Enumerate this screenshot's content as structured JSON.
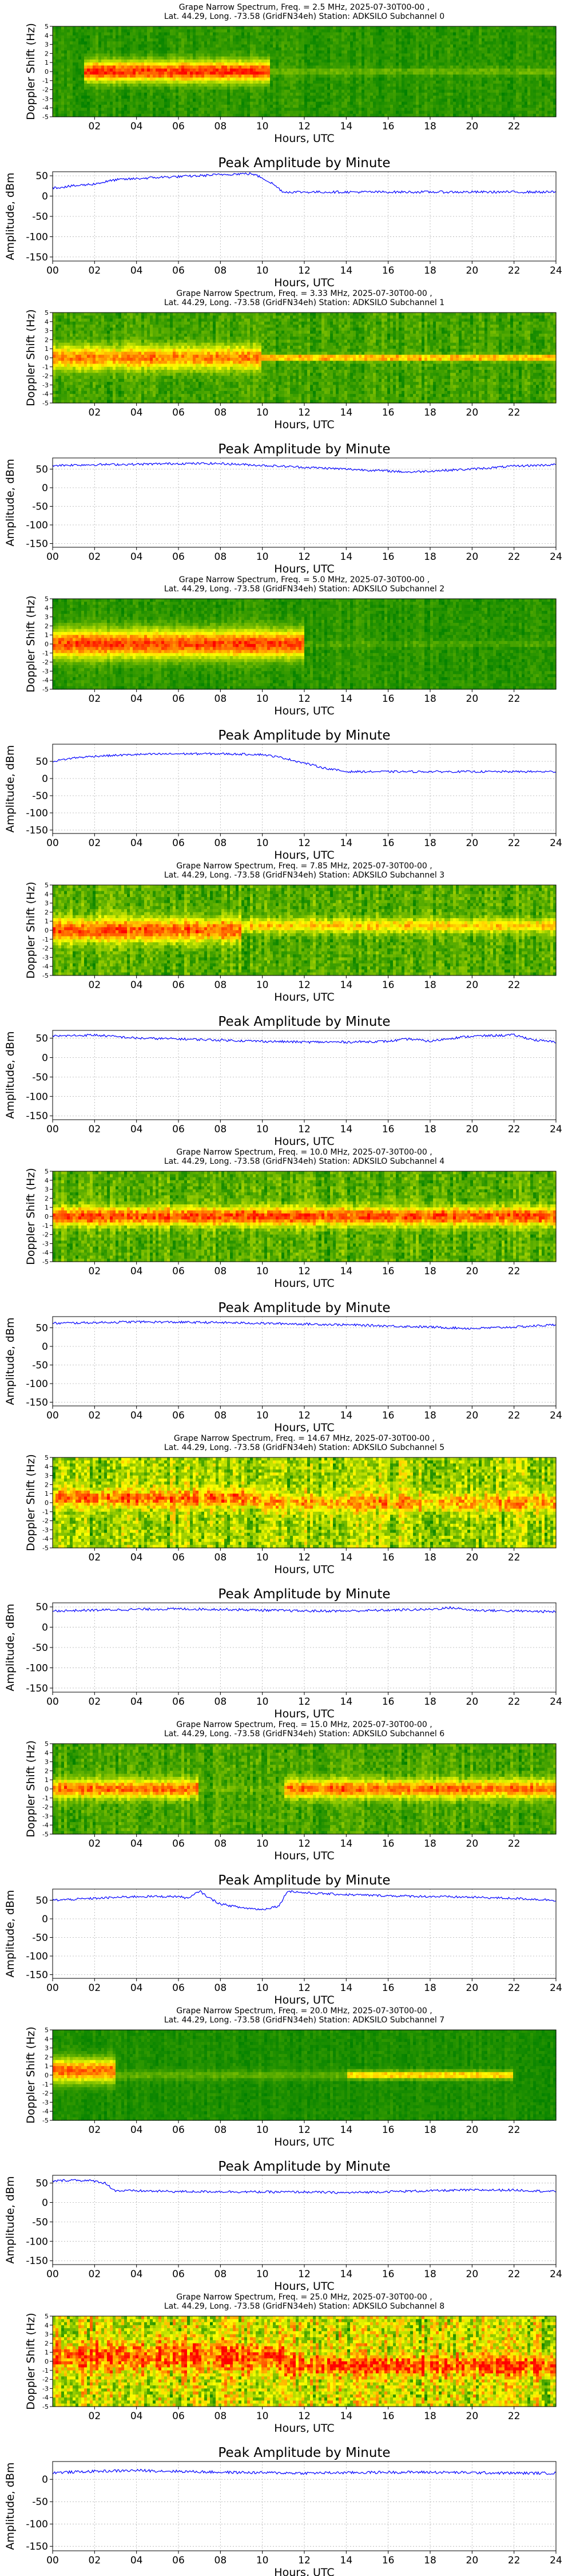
{
  "figure": {
    "spectrogram_ylabel": "Doppler Shift (Hz)",
    "amplitude_ylabel": "Amplitude, dBm",
    "xlabel": "Hours, UTC",
    "amplitude_title": "Peak Amplitude by Minute",
    "spectrogram_yticks": [
      "5",
      "4",
      "3",
      "2",
      "1",
      "0",
      "-1",
      "-2",
      "-3",
      "-4",
      "-5"
    ],
    "colors": {
      "line": "#0000ff",
      "grid": "#b0b0b0",
      "spec_low": "#008000",
      "spec_mid": "#ffff00",
      "spec_high": "#ff0000"
    }
  },
  "chart_data": [
    {
      "type": "heatmap",
      "title": "Grape Narrow Spectrum, Freq. = 2.5 MHz, 2025-07-30T00-00 ,",
      "subtitle": "Lat. 44.29, Long. -73.58 (GridFN34eh) Station: ADKSILO Subchannel 0",
      "xlabel": "Hours, UTC",
      "ylabel": "Doppler Shift (Hz)",
      "xlim": [
        0,
        24
      ],
      "ylim": [
        -5,
        5
      ],
      "x_ticks": [
        "02",
        "04",
        "06",
        "08",
        "10",
        "12",
        "14",
        "16",
        "18",
        "20",
        "22"
      ],
      "signal_bands": [
        {
          "start": 1.5,
          "end": 10.3,
          "center": 0.0,
          "width": 2.2,
          "intensity": 0.95
        },
        {
          "start": 10.3,
          "end": 24,
          "center": 0.0,
          "width": 0.8,
          "intensity": 0.15
        }
      ],
      "noise": 0.12
    },
    {
      "type": "line",
      "title": "Peak Amplitude by Minute",
      "xlabel": "Hours, UTC",
      "ylabel": "Amplitude, dBm",
      "xlim": [
        0,
        24
      ],
      "ylim": [
        -160,
        60
      ],
      "x_ticks": [
        "00",
        "02",
        "04",
        "06",
        "08",
        "10",
        "12",
        "14",
        "16",
        "18",
        "20",
        "22",
        "24"
      ],
      "y_ticks": [
        50,
        0,
        -50,
        -100,
        -150
      ],
      "grid": true,
      "x": [
        0,
        1,
        2,
        3,
        4,
        5,
        6,
        7,
        8,
        9,
        9.5,
        10,
        10.5,
        11,
        12,
        14,
        16,
        18,
        20,
        22,
        24
      ],
      "y": [
        20,
        25,
        30,
        40,
        43,
        46,
        48,
        50,
        53,
        55,
        55,
        45,
        30,
        10,
        10,
        10,
        10,
        10,
        10,
        10,
        10
      ]
    },
    {
      "type": "heatmap",
      "title": "Grape Narrow Spectrum, Freq. = 3.33 MHz, 2025-07-30T00-00 ,",
      "subtitle": "Lat. 44.29, Long. -73.58 (GridFN34eh) Station: ADKSILO Subchannel 1",
      "xlabel": "Hours, UTC",
      "ylabel": "Doppler Shift (Hz)",
      "xlim": [
        0,
        24
      ],
      "ylim": [
        -5,
        5
      ],
      "x_ticks": [
        "02",
        "04",
        "06",
        "08",
        "10",
        "12",
        "14",
        "16",
        "18",
        "20",
        "22"
      ],
      "signal_bands": [
        {
          "start": 0,
          "end": 10,
          "center": 0.0,
          "width": 2.5,
          "intensity": 0.7
        },
        {
          "start": 10,
          "end": 24,
          "center": 0.0,
          "width": 0.6,
          "intensity": 0.75
        }
      ],
      "noise": 0.18
    },
    {
      "type": "line",
      "title": "Peak Amplitude by Minute",
      "xlabel": "Hours, UTC",
      "ylabel": "Amplitude, dBm",
      "xlim": [
        0,
        24
      ],
      "ylim": [
        -160,
        80
      ],
      "x_ticks": [
        "00",
        "02",
        "04",
        "06",
        "08",
        "10",
        "12",
        "14",
        "16",
        "18",
        "20",
        "22",
        "24"
      ],
      "y_ticks": [
        50,
        0,
        -50,
        -100,
        -150
      ],
      "grid": true,
      "x": [
        0,
        2,
        4,
        6,
        8,
        10,
        12,
        14,
        16,
        17,
        18,
        20,
        22,
        24
      ],
      "y": [
        60,
        62,
        63,
        65,
        65,
        60,
        55,
        50,
        45,
        42,
        45,
        50,
        58,
        62
      ]
    },
    {
      "type": "heatmap",
      "title": "Grape Narrow Spectrum, Freq. = 5.0 MHz, 2025-07-30T00-00 ,",
      "subtitle": "Lat. 44.29, Long. -73.58 (GridFN34eh) Station: ADKSILO Subchannel 2",
      "xlabel": "Hours, UTC",
      "ylabel": "Doppler Shift (Hz)",
      "xlim": [
        0,
        24
      ],
      "ylim": [
        -5,
        5
      ],
      "x_ticks": [
        "02",
        "04",
        "06",
        "08",
        "10",
        "12",
        "14",
        "16",
        "18",
        "20",
        "22"
      ],
      "signal_bands": [
        {
          "start": 0,
          "end": 12,
          "center": 0.0,
          "width": 3.0,
          "intensity": 0.9
        },
        {
          "start": 12,
          "end": 24,
          "center": 0.0,
          "width": 0.5,
          "intensity": 0.1
        }
      ],
      "noise": 0.12
    },
    {
      "type": "line",
      "title": "Peak Amplitude by Minute",
      "xlabel": "Hours, UTC",
      "ylabel": "Amplitude, dBm",
      "xlim": [
        0,
        24
      ],
      "ylim": [
        -160,
        100
      ],
      "x_ticks": [
        "00",
        "02",
        "04",
        "06",
        "08",
        "10",
        "12",
        "14",
        "16",
        "18",
        "20",
        "22",
        "24"
      ],
      "y_ticks": [
        50,
        0,
        -50,
        -100,
        -150
      ],
      "grid": true,
      "x": [
        0,
        1,
        2,
        4,
        6,
        8,
        10,
        11,
        12,
        13,
        14,
        16,
        18,
        20,
        22,
        24
      ],
      "y": [
        50,
        60,
        65,
        70,
        72,
        72,
        70,
        60,
        45,
        30,
        20,
        20,
        20,
        20,
        20,
        20
      ]
    },
    {
      "type": "heatmap",
      "title": "Grape Narrow Spectrum, Freq. = 7.85 MHz, 2025-07-30T00-00 ,",
      "subtitle": "Lat. 44.29, Long. -73.58 (GridFN34eh) Station: ADKSILO Subchannel 3",
      "xlabel": "Hours, UTC",
      "ylabel": "Doppler Shift (Hz)",
      "xlim": [
        0,
        24
      ],
      "ylim": [
        -5,
        5
      ],
      "x_ticks": [
        "02",
        "04",
        "06",
        "08",
        "10",
        "12",
        "14",
        "16",
        "18",
        "20",
        "22"
      ],
      "signal_bands": [
        {
          "start": 0,
          "end": 9,
          "center": 0.0,
          "width": 2.5,
          "intensity": 0.75
        },
        {
          "start": 9,
          "end": 24,
          "center": 0.5,
          "width": 1.5,
          "intensity": 0.5
        }
      ],
      "noise": 0.25
    },
    {
      "type": "line",
      "title": "Peak Amplitude by Minute",
      "xlabel": "Hours, UTC",
      "ylabel": "Amplitude, dBm",
      "xlim": [
        0,
        24
      ],
      "ylim": [
        -160,
        70
      ],
      "x_ticks": [
        "00",
        "02",
        "04",
        "06",
        "08",
        "10",
        "12",
        "14",
        "16",
        "18",
        "20",
        "22",
        "24"
      ],
      "y_ticks": [
        50,
        0,
        -50,
        -100,
        -150
      ],
      "grid": true,
      "x": [
        0,
        2,
        4,
        6,
        8,
        10,
        12,
        14,
        16,
        17,
        18,
        19,
        20,
        22,
        23,
        24
      ],
      "y": [
        55,
        58,
        50,
        48,
        45,
        42,
        40,
        40,
        42,
        48,
        42,
        50,
        55,
        58,
        45,
        40
      ]
    },
    {
      "type": "heatmap",
      "title": "Grape Narrow Spectrum, Freq. = 10.0 MHz, 2025-07-30T00-00 ,",
      "subtitle": "Lat. 44.29, Long. -73.58 (GridFN34eh) Station: ADKSILO Subchannel 4",
      "xlabel": "Hours, UTC",
      "ylabel": "Doppler Shift (Hz)",
      "xlim": [
        0,
        24
      ],
      "ylim": [
        -5,
        5
      ],
      "x_ticks": [
        "02",
        "04",
        "06",
        "08",
        "10",
        "12",
        "14",
        "16",
        "18",
        "20",
        "22"
      ],
      "signal_bands": [
        {
          "start": 0,
          "end": 24,
          "center": 0.0,
          "width": 2.0,
          "intensity": 0.8
        }
      ],
      "noise": 0.25
    },
    {
      "type": "line",
      "title": "Peak Amplitude by Minute",
      "xlabel": "Hours, UTC",
      "ylabel": "Amplitude, dBm",
      "xlim": [
        0,
        24
      ],
      "ylim": [
        -160,
        80
      ],
      "x_ticks": [
        "00",
        "02",
        "04",
        "06",
        "08",
        "10",
        "12",
        "14",
        "16",
        "18",
        "20",
        "22",
        "24"
      ],
      "y_ticks": [
        50,
        0,
        -50,
        -100,
        -150
      ],
      "grid": true,
      "x": [
        0,
        2,
        4,
        6,
        8,
        10,
        12,
        14,
        16,
        18,
        20,
        22,
        24
      ],
      "y": [
        62,
        64,
        66,
        65,
        64,
        62,
        60,
        58,
        55,
        52,
        48,
        52,
        58
      ]
    },
    {
      "type": "heatmap",
      "title": "Grape Narrow Spectrum, Freq. = 14.67 MHz, 2025-07-30T00-00 ,",
      "subtitle": "Lat. 44.29, Long. -73.58 (GridFN34eh) Station: ADKSILO Subchannel 5",
      "xlabel": "Hours, UTC",
      "ylabel": "Doppler Shift (Hz)",
      "xlim": [
        0,
        24
      ],
      "ylim": [
        -5,
        5
      ],
      "x_ticks": [
        "02",
        "04",
        "06",
        "08",
        "10",
        "12",
        "14",
        "16",
        "18",
        "20",
        "22"
      ],
      "signal_bands": [
        {
          "start": 0,
          "end": 10,
          "center": 0.5,
          "width": 2.0,
          "intensity": 0.55
        },
        {
          "start": 10,
          "end": 24,
          "center": 0.0,
          "width": 2.0,
          "intensity": 0.4
        }
      ],
      "noise": 0.45
    },
    {
      "type": "line",
      "title": "Peak Amplitude by Minute",
      "xlabel": "Hours, UTC",
      "ylabel": "Amplitude, dBm",
      "xlim": [
        0,
        24
      ],
      "ylim": [
        -160,
        60
      ],
      "x_ticks": [
        "00",
        "02",
        "04",
        "06",
        "08",
        "10",
        "12",
        "14",
        "16",
        "18",
        "20",
        "22",
        "24"
      ],
      "y_ticks": [
        50,
        0,
        -50,
        -100,
        -150
      ],
      "grid": true,
      "x": [
        0,
        2,
        4,
        6,
        8,
        10,
        12,
        14,
        16,
        18,
        19,
        20,
        22,
        24
      ],
      "y": [
        40,
        42,
        44,
        45,
        44,
        42,
        40,
        40,
        42,
        44,
        48,
        42,
        40,
        38
      ]
    },
    {
      "type": "heatmap",
      "title": "Grape Narrow Spectrum, Freq. = 15.0 MHz, 2025-07-30T00-00 ,",
      "subtitle": "Lat. 44.29, Long. -73.58 (GridFN34eh) Station: ADKSILO Subchannel 6",
      "xlabel": "Hours, UTC",
      "ylabel": "Doppler Shift (Hz)",
      "xlim": [
        0,
        24
      ],
      "ylim": [
        -5,
        5
      ],
      "x_ticks": [
        "02",
        "04",
        "06",
        "08",
        "10",
        "12",
        "14",
        "16",
        "18",
        "20",
        "22"
      ],
      "signal_bands": [
        {
          "start": 0,
          "end": 7,
          "center": 0.0,
          "width": 2.0,
          "intensity": 0.75
        },
        {
          "start": 7,
          "end": 11,
          "center": 0.0,
          "width": 0.5,
          "intensity": 0.1
        },
        {
          "start": 11,
          "end": 24,
          "center": 0.0,
          "width": 2.0,
          "intensity": 0.75
        }
      ],
      "noise": 0.2
    },
    {
      "type": "line",
      "title": "Peak Amplitude by Minute",
      "xlabel": "Hours, UTC",
      "ylabel": "Amplitude, dBm",
      "xlim": [
        0,
        24
      ],
      "ylim": [
        -160,
        80
      ],
      "x_ticks": [
        "00",
        "02",
        "04",
        "06",
        "08",
        "10",
        "12",
        "14",
        "16",
        "18",
        "20",
        "22",
        "24"
      ],
      "y_ticks": [
        50,
        0,
        -50,
        -100,
        -150
      ],
      "grid": true,
      "x": [
        0,
        2,
        4,
        6,
        6.5,
        7,
        7.5,
        8,
        9,
        10,
        10.8,
        11.2,
        12,
        14,
        16,
        18,
        20,
        22,
        24
      ],
      "y": [
        50,
        55,
        60,
        60,
        55,
        75,
        55,
        40,
        30,
        25,
        35,
        75,
        70,
        65,
        62,
        60,
        58,
        55,
        50
      ]
    },
    {
      "type": "heatmap",
      "title": "Grape Narrow Spectrum, Freq. = 20.0 MHz, 2025-07-30T00-00 ,",
      "subtitle": "Lat. 44.29, Long. -73.58 (GridFN34eh) Station: ADKSILO Subchannel 7",
      "xlabel": "Hours, UTC",
      "ylabel": "Doppler Shift (Hz)",
      "xlim": [
        0,
        24
      ],
      "ylim": [
        -5,
        5
      ],
      "x_ticks": [
        "02",
        "04",
        "06",
        "08",
        "10",
        "12",
        "14",
        "16",
        "18",
        "20",
        "22"
      ],
      "signal_bands": [
        {
          "start": 0,
          "end": 3,
          "center": 0.5,
          "width": 2.5,
          "intensity": 0.85
        },
        {
          "start": 3,
          "end": 14,
          "center": 0.0,
          "width": 1.0,
          "intensity": 0.15
        },
        {
          "start": 14,
          "end": 22,
          "center": 0.0,
          "width": 0.8,
          "intensity": 0.7
        }
      ],
      "noise": 0.08
    },
    {
      "type": "line",
      "title": "Peak Amplitude by Minute",
      "xlabel": "Hours, UTC",
      "ylabel": "Amplitude, dBm",
      "xlim": [
        0,
        24
      ],
      "ylim": [
        -160,
        70
      ],
      "x_ticks": [
        "00",
        "02",
        "04",
        "06",
        "08",
        "10",
        "12",
        "14",
        "16",
        "18",
        "20",
        "22",
        "24"
      ],
      "y_ticks": [
        50,
        0,
        -50,
        -100,
        -150
      ],
      "grid": true,
      "x": [
        0,
        1,
        2,
        2.5,
        3,
        4,
        6,
        8,
        10,
        12,
        14,
        16,
        18,
        20,
        22,
        24
      ],
      "y": [
        55,
        58,
        55,
        50,
        30,
        30,
        28,
        28,
        27,
        27,
        25,
        28,
        30,
        32,
        32,
        28
      ]
    },
    {
      "type": "heatmap",
      "title": "Grape Narrow Spectrum, Freq. = 25.0 MHz, 2025-07-30T00-00 ,",
      "subtitle": "Lat. 44.29, Long. -73.58 (GridFN34eh) Station: ADKSILO Subchannel 8",
      "xlabel": "Hours, UTC",
      "ylabel": "Doppler Shift (Hz)",
      "xlim": [
        0,
        24
      ],
      "ylim": [
        -5,
        5
      ],
      "x_ticks": [
        "02",
        "04",
        "06",
        "08",
        "10",
        "12",
        "14",
        "16",
        "18",
        "20",
        "22"
      ],
      "signal_bands": [
        {
          "start": 0,
          "end": 11,
          "center": 0.5,
          "width": 3.0,
          "intensity": 0.5
        },
        {
          "start": 11,
          "end": 24,
          "center": -0.5,
          "width": 2.0,
          "intensity": 0.55
        }
      ],
      "noise": 0.6
    },
    {
      "type": "line",
      "title": "Peak Amplitude by Minute",
      "xlabel": "Hours, UTC",
      "ylabel": "Amplitude, dBm",
      "xlim": [
        0,
        24
      ],
      "ylim": [
        -160,
        40
      ],
      "x_ticks": [
        "00",
        "02",
        "04",
        "06",
        "08",
        "10",
        "12",
        "14",
        "16",
        "18",
        "20",
        "22",
        "24"
      ],
      "y_ticks": [
        0,
        -50,
        -100,
        -150
      ],
      "grid": true,
      "x": [
        0,
        2,
        4,
        6,
        8,
        10,
        12,
        14,
        16,
        18,
        20,
        22,
        24
      ],
      "y": [
        15,
        18,
        20,
        18,
        16,
        15,
        14,
        15,
        16,
        16,
        15,
        14,
        14
      ]
    }
  ]
}
